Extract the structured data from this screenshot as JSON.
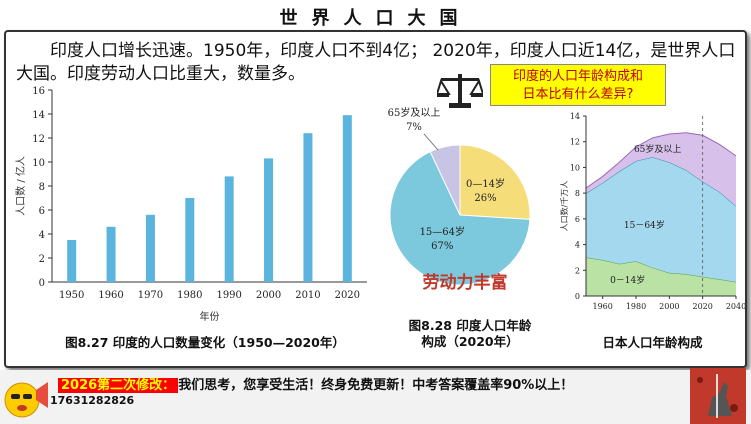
{
  "page": {
    "title": "世界人口大国"
  },
  "intro": {
    "text": "印度人口增长迅速。1950年，印度人口不到4亿； 2020年，印度人口近14亿，是世界人口大国。印度劳动人口比重大，数量多。"
  },
  "question": {
    "line1": "印度的人口年龄构成和",
    "line2": "日本比有什么差异?"
  },
  "colors": {
    "bar": "#5ab4dc",
    "pie_young": "#f5de7a",
    "pie_work": "#7cc8dd",
    "pie_old": "#c8c4e4",
    "accent": "#c0392b"
  },
  "bar_caption": "图8.27  印度的人口数量变化（1950—2020年）",
  "pie_caption": {
    "line1": "图8.28  印度人口年龄",
    "line2": "构成（2020年）"
  },
  "japan_caption": "日本人口年龄构成",
  "pie_annotation": "劳动力丰富",
  "chart_data": [
    {
      "type": "bar",
      "title": "印度的人口数量变化（1950—2020年）",
      "categories": [
        "1950",
        "1960",
        "1970",
        "1980",
        "1990",
        "2000",
        "2010",
        "2020"
      ],
      "values": [
        3.5,
        4.6,
        5.6,
        7.0,
        8.8,
        10.3,
        12.4,
        13.9
      ],
      "ylabel": "人口数 / 亿人",
      "xlabel": "年份",
      "ylim": [
        0,
        16
      ],
      "yticks": [
        0,
        2,
        4,
        6,
        8,
        10,
        12,
        14,
        16
      ]
    },
    {
      "type": "pie",
      "title": "印度人口年龄构成（2020年）",
      "slices": [
        {
          "label": "0—14岁",
          "value": 26,
          "pct_label": "26%"
        },
        {
          "label": "15—64岁",
          "value": 67,
          "pct_label": "67%"
        },
        {
          "label": "65岁及以上",
          "value": 7,
          "pct_label": "7%"
        }
      ]
    },
    {
      "type": "area",
      "title": "日本人口年龄构成",
      "ylabel": "人口数/千万人",
      "xlim": [
        1950,
        2040
      ],
      "ylim": [
        0,
        14
      ],
      "xticks": [
        1960,
        1980,
        2000,
        2020,
        2040
      ],
      "yticks": [
        0,
        2,
        4,
        6,
        8,
        10,
        12,
        14
      ],
      "x": [
        1950,
        1960,
        1970,
        1980,
        1990,
        2000,
        2010,
        2020,
        2030,
        2040
      ],
      "series": [
        {
          "name": "0—14岁",
          "values": [
            3.0,
            2.8,
            2.5,
            2.7,
            2.2,
            1.8,
            1.7,
            1.5,
            1.3,
            1.1
          ]
        },
        {
          "name": "15—64岁",
          "values": [
            5.0,
            6.0,
            7.2,
            7.8,
            8.6,
            8.6,
            8.1,
            7.4,
            6.8,
            5.9
          ]
        },
        {
          "name": "65岁及以上",
          "values": [
            0.4,
            0.5,
            0.7,
            1.1,
            1.5,
            2.2,
            2.9,
            3.6,
            3.7,
            3.9
          ]
        }
      ],
      "labels": {
        "old": "65岁及以上",
        "work": "15－64岁",
        "young": "0－14岁"
      }
    }
  ],
  "footer": {
    "tag": "2026第二次修改：",
    "text": "我们思考，您享受生活！终身免费更新！中考答案覆盖率90%以上！",
    "phone": "17631282826"
  }
}
